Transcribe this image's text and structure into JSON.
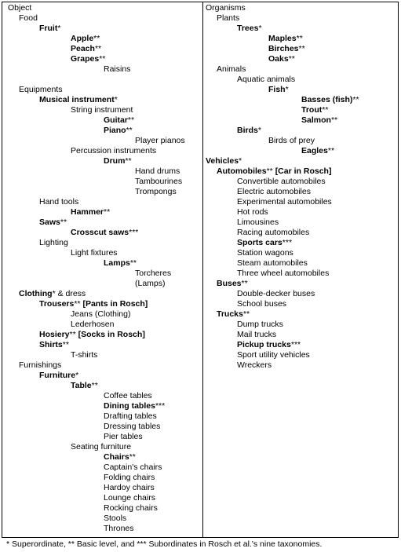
{
  "left_column": [
    {
      "level": 0,
      "segments": [
        {
          "t": "Object",
          "b": false
        }
      ]
    },
    {
      "level": 1,
      "segments": [
        {
          "t": "Food",
          "b": false
        }
      ]
    },
    {
      "level": 2,
      "segments": [
        {
          "t": "Fruit",
          "b": true
        },
        {
          "t": "*",
          "b": false
        }
      ]
    },
    {
      "level": 3,
      "segments": [
        {
          "t": "Apple",
          "b": true
        },
        {
          "t": "**",
          "b": false
        }
      ]
    },
    {
      "level": 3,
      "segments": [
        {
          "t": "Peach",
          "b": true
        },
        {
          "t": "**",
          "b": false
        }
      ]
    },
    {
      "level": 3,
      "segments": [
        {
          "t": "Grapes",
          "b": true
        },
        {
          "t": "**",
          "b": false
        }
      ]
    },
    {
      "level": 4,
      "segments": [
        {
          "t": "Raisins",
          "b": false
        }
      ]
    },
    {
      "level": 0,
      "segments": []
    },
    {
      "level": 1,
      "segments": [
        {
          "t": "Equipments",
          "b": false
        }
      ]
    },
    {
      "level": 2,
      "segments": [
        {
          "t": "Musical instrument",
          "b": true
        },
        {
          "t": "*",
          "b": false
        }
      ]
    },
    {
      "level": 3,
      "segments": [
        {
          "t": "String instrument",
          "b": false
        }
      ]
    },
    {
      "level": 4,
      "segments": [
        {
          "t": "Guitar",
          "b": true
        },
        {
          "t": "**",
          "b": false
        }
      ]
    },
    {
      "level": 4,
      "segments": [
        {
          "t": "Piano",
          "b": true
        },
        {
          "t": "**",
          "b": false
        }
      ]
    },
    {
      "level": 5,
      "segments": [
        {
          "t": "Player pianos",
          "b": false
        }
      ]
    },
    {
      "level": 3,
      "segments": [
        {
          "t": "Percussion instruments",
          "b": false
        }
      ]
    },
    {
      "level": 4,
      "segments": [
        {
          "t": "Drum",
          "b": true
        },
        {
          "t": "**",
          "b": false
        }
      ]
    },
    {
      "level": 5,
      "segments": [
        {
          "t": "Hand drums",
          "b": false
        }
      ]
    },
    {
      "level": 5,
      "segments": [
        {
          "t": "Tambourines",
          "b": false
        }
      ]
    },
    {
      "level": 5,
      "segments": [
        {
          "t": "Trompongs",
          "b": false
        }
      ]
    },
    {
      "level": 2,
      "segments": [
        {
          "t": "Hand tools",
          "b": false
        }
      ]
    },
    {
      "level": 3,
      "segments": [
        {
          "t": "Hammer",
          "b": true
        },
        {
          "t": "**",
          "b": false
        }
      ]
    },
    {
      "level": 2,
      "segments": [
        {
          "t": "Saws",
          "b": true
        },
        {
          "t": "**",
          "b": false
        }
      ]
    },
    {
      "level": 3,
      "segments": [
        {
          "t": "Crosscut saws",
          "b": true
        },
        {
          "t": "***",
          "b": false
        }
      ]
    },
    {
      "level": 2,
      "segments": [
        {
          "t": "Lighting",
          "b": false
        }
      ]
    },
    {
      "level": 3,
      "segments": [
        {
          "t": "Light fixtures",
          "b": false
        }
      ]
    },
    {
      "level": 4,
      "segments": [
        {
          "t": "Lamps",
          "b": true
        },
        {
          "t": "**",
          "b": false
        }
      ]
    },
    {
      "level": 5,
      "segments": [
        {
          "t": "Torcheres",
          "b": false
        }
      ]
    },
    {
      "level": 5,
      "segments": [
        {
          "t": "(Lamps)",
          "b": false
        }
      ]
    },
    {
      "level": 1,
      "segments": [
        {
          "t": "Clothing",
          "b": true
        },
        {
          "t": "* & dress",
          "b": false
        }
      ]
    },
    {
      "level": 2,
      "segments": [
        {
          "t": "Trousers",
          "b": true
        },
        {
          "t": "** ",
          "b": false
        },
        {
          "t": "[Pants in Rosch]",
          "b": true
        }
      ]
    },
    {
      "level": 3,
      "segments": [
        {
          "t": "Jeans (Clothing)",
          "b": false
        }
      ]
    },
    {
      "level": 3,
      "segments": [
        {
          "t": "Lederhosen",
          "b": false
        }
      ]
    },
    {
      "level": 2,
      "segments": [
        {
          "t": "Hosiery",
          "b": true
        },
        {
          "t": "** ",
          "b": false
        },
        {
          "t": "[Socks in Rosch]",
          "b": true
        }
      ]
    },
    {
      "level": 2,
      "segments": [
        {
          "t": "Shirts",
          "b": true
        },
        {
          "t": "**",
          "b": false
        }
      ]
    },
    {
      "level": 3,
      "segments": [
        {
          "t": "T-shirts",
          "b": false
        }
      ]
    },
    {
      "level": 1,
      "segments": [
        {
          "t": "Furnishings",
          "b": false
        }
      ]
    },
    {
      "level": 2,
      "segments": [
        {
          "t": "Furniture",
          "b": true
        },
        {
          "t": "*",
          "b": false
        }
      ]
    },
    {
      "level": 3,
      "segments": [
        {
          "t": "Table",
          "b": true
        },
        {
          "t": "**",
          "b": false
        }
      ]
    },
    {
      "level": 4,
      "segments": [
        {
          "t": "Coffee tables",
          "b": false
        }
      ]
    },
    {
      "level": 4,
      "segments": [
        {
          "t": "Dining tables",
          "b": true
        },
        {
          "t": "***",
          "b": false
        }
      ]
    },
    {
      "level": 4,
      "segments": [
        {
          "t": "Drafting tables",
          "b": false
        }
      ]
    },
    {
      "level": 4,
      "segments": [
        {
          "t": "Dressing tables",
          "b": false
        }
      ]
    },
    {
      "level": 4,
      "segments": [
        {
          "t": "Pier tables",
          "b": false
        }
      ]
    },
    {
      "level": 3,
      "segments": [
        {
          "t": "Seating furniture",
          "b": false
        }
      ]
    },
    {
      "level": 4,
      "segments": [
        {
          "t": "Chairs",
          "b": true
        },
        {
          "t": "**",
          "b": false
        }
      ]
    },
    {
      "level": 4,
      "segments": [
        {
          "t": "Captain's chairs",
          "b": false
        }
      ]
    },
    {
      "level": 4,
      "segments": [
        {
          "t": "Folding chairs",
          "b": false
        }
      ]
    },
    {
      "level": 4,
      "segments": [
        {
          "t": "Hardoy chairs",
          "b": false
        }
      ]
    },
    {
      "level": 4,
      "segments": [
        {
          "t": "Lounge chairs",
          "b": false
        }
      ]
    },
    {
      "level": 4,
      "segments": [
        {
          "t": "Rocking chairs",
          "b": false
        }
      ]
    },
    {
      "level": 4,
      "segments": [
        {
          "t": "Stools",
          "b": false
        }
      ]
    },
    {
      "level": 4,
      "segments": [
        {
          "t": "Thrones",
          "b": false
        }
      ]
    }
  ],
  "right_column": [
    {
      "level": 0,
      "segments": [
        {
          "t": "Organisms",
          "b": false
        }
      ]
    },
    {
      "level": 1,
      "segments": [
        {
          "t": "Plants",
          "b": false
        }
      ]
    },
    {
      "level": 2,
      "segments": [
        {
          "t": "Trees",
          "b": true
        },
        {
          "t": "*",
          "b": false
        }
      ]
    },
    {
      "level": 3,
      "segments": [
        {
          "t": "Maples",
          "b": true
        },
        {
          "t": "**",
          "b": false
        }
      ]
    },
    {
      "level": 3,
      "segments": [
        {
          "t": "Birches",
          "b": true
        },
        {
          "t": "**",
          "b": false
        }
      ]
    },
    {
      "level": 3,
      "segments": [
        {
          "t": "Oaks",
          "b": true
        },
        {
          "t": "**",
          "b": false
        }
      ]
    },
    {
      "level": 1,
      "segments": [
        {
          "t": "Animals",
          "b": false
        }
      ]
    },
    {
      "level": 2,
      "segments": [
        {
          "t": "Aquatic animals",
          "b": false
        }
      ]
    },
    {
      "level": 3,
      "segments": [
        {
          "t": "Fish",
          "b": true
        },
        {
          "t": "*",
          "b": false
        }
      ]
    },
    {
      "level": 4,
      "segments": [
        {
          "t": "Basses (fish)",
          "b": true
        },
        {
          "t": "**",
          "b": false
        }
      ]
    },
    {
      "level": 4,
      "segments": [
        {
          "t": "Trout",
          "b": true
        },
        {
          "t": "**",
          "b": false
        }
      ]
    },
    {
      "level": 4,
      "segments": [
        {
          "t": "Salmon",
          "b": true
        },
        {
          "t": "**",
          "b": false
        }
      ]
    },
    {
      "level": 2,
      "segments": [
        {
          "t": "Birds",
          "b": true
        },
        {
          "t": "*",
          "b": false
        }
      ]
    },
    {
      "level": 3,
      "segments": [
        {
          "t": "Birds of prey",
          "b": false
        }
      ]
    },
    {
      "level": 4,
      "segments": [
        {
          "t": "Eagles",
          "b": true
        },
        {
          "t": "**",
          "b": false
        }
      ]
    },
    {
      "level": 0,
      "segments": [
        {
          "t": "Vehicles",
          "b": true
        },
        {
          "t": "*",
          "b": false
        }
      ]
    },
    {
      "level": 1,
      "segments": [
        {
          "t": "Automobiles",
          "b": true
        },
        {
          "t": "** ",
          "b": false
        },
        {
          "t": "[Car in Rosch]",
          "b": true
        }
      ]
    },
    {
      "level": 2,
      "segments": [
        {
          "t": "Convertible automobiles",
          "b": false
        }
      ]
    },
    {
      "level": 2,
      "segments": [
        {
          "t": "Electric automobiles",
          "b": false
        }
      ]
    },
    {
      "level": 2,
      "segments": [
        {
          "t": "Experimental automobiles",
          "b": false
        }
      ]
    },
    {
      "level": 2,
      "segments": [
        {
          "t": "Hot rods",
          "b": false
        }
      ]
    },
    {
      "level": 2,
      "segments": [
        {
          "t": "Limousines",
          "b": false
        }
      ]
    },
    {
      "level": 2,
      "segments": [
        {
          "t": "Racing automobiles",
          "b": false
        }
      ]
    },
    {
      "level": 2,
      "segments": [
        {
          "t": "Sports cars",
          "b": true
        },
        {
          "t": "***",
          "b": false
        }
      ]
    },
    {
      "level": 2,
      "segments": [
        {
          "t": "Station wagons",
          "b": false
        }
      ]
    },
    {
      "level": 2,
      "segments": [
        {
          "t": "Steam automobiles",
          "b": false
        }
      ]
    },
    {
      "level": 2,
      "segments": [
        {
          "t": "Three wheel automobiles",
          "b": false
        }
      ]
    },
    {
      "level": 1,
      "segments": [
        {
          "t": "Buses",
          "b": true
        },
        {
          "t": "**",
          "b": false
        }
      ]
    },
    {
      "level": 2,
      "segments": [
        {
          "t": "Double-decker buses",
          "b": false
        }
      ]
    },
    {
      "level": 2,
      "segments": [
        {
          "t": "School buses",
          "b": false
        }
      ]
    },
    {
      "level": 1,
      "segments": [
        {
          "t": "Trucks",
          "b": true
        },
        {
          "t": "**",
          "b": false
        }
      ]
    },
    {
      "level": 2,
      "segments": [
        {
          "t": "Dump trucks",
          "b": false
        }
      ]
    },
    {
      "level": 2,
      "segments": [
        {
          "t": "Mail trucks",
          "b": false
        }
      ]
    },
    {
      "level": 2,
      "segments": [
        {
          "t": "Pickup trucks",
          "b": true
        },
        {
          "t": "***",
          "b": false
        }
      ]
    },
    {
      "level": 2,
      "segments": [
        {
          "t": "Sport utility vehicles",
          "b": false
        }
      ]
    },
    {
      "level": 2,
      "segments": [
        {
          "t": "Wreckers",
          "b": false
        }
      ]
    }
  ],
  "footnote": "* Superordinate, ** Basic level, and *** Subordinates in Rosch et al.'s nine taxonomies."
}
